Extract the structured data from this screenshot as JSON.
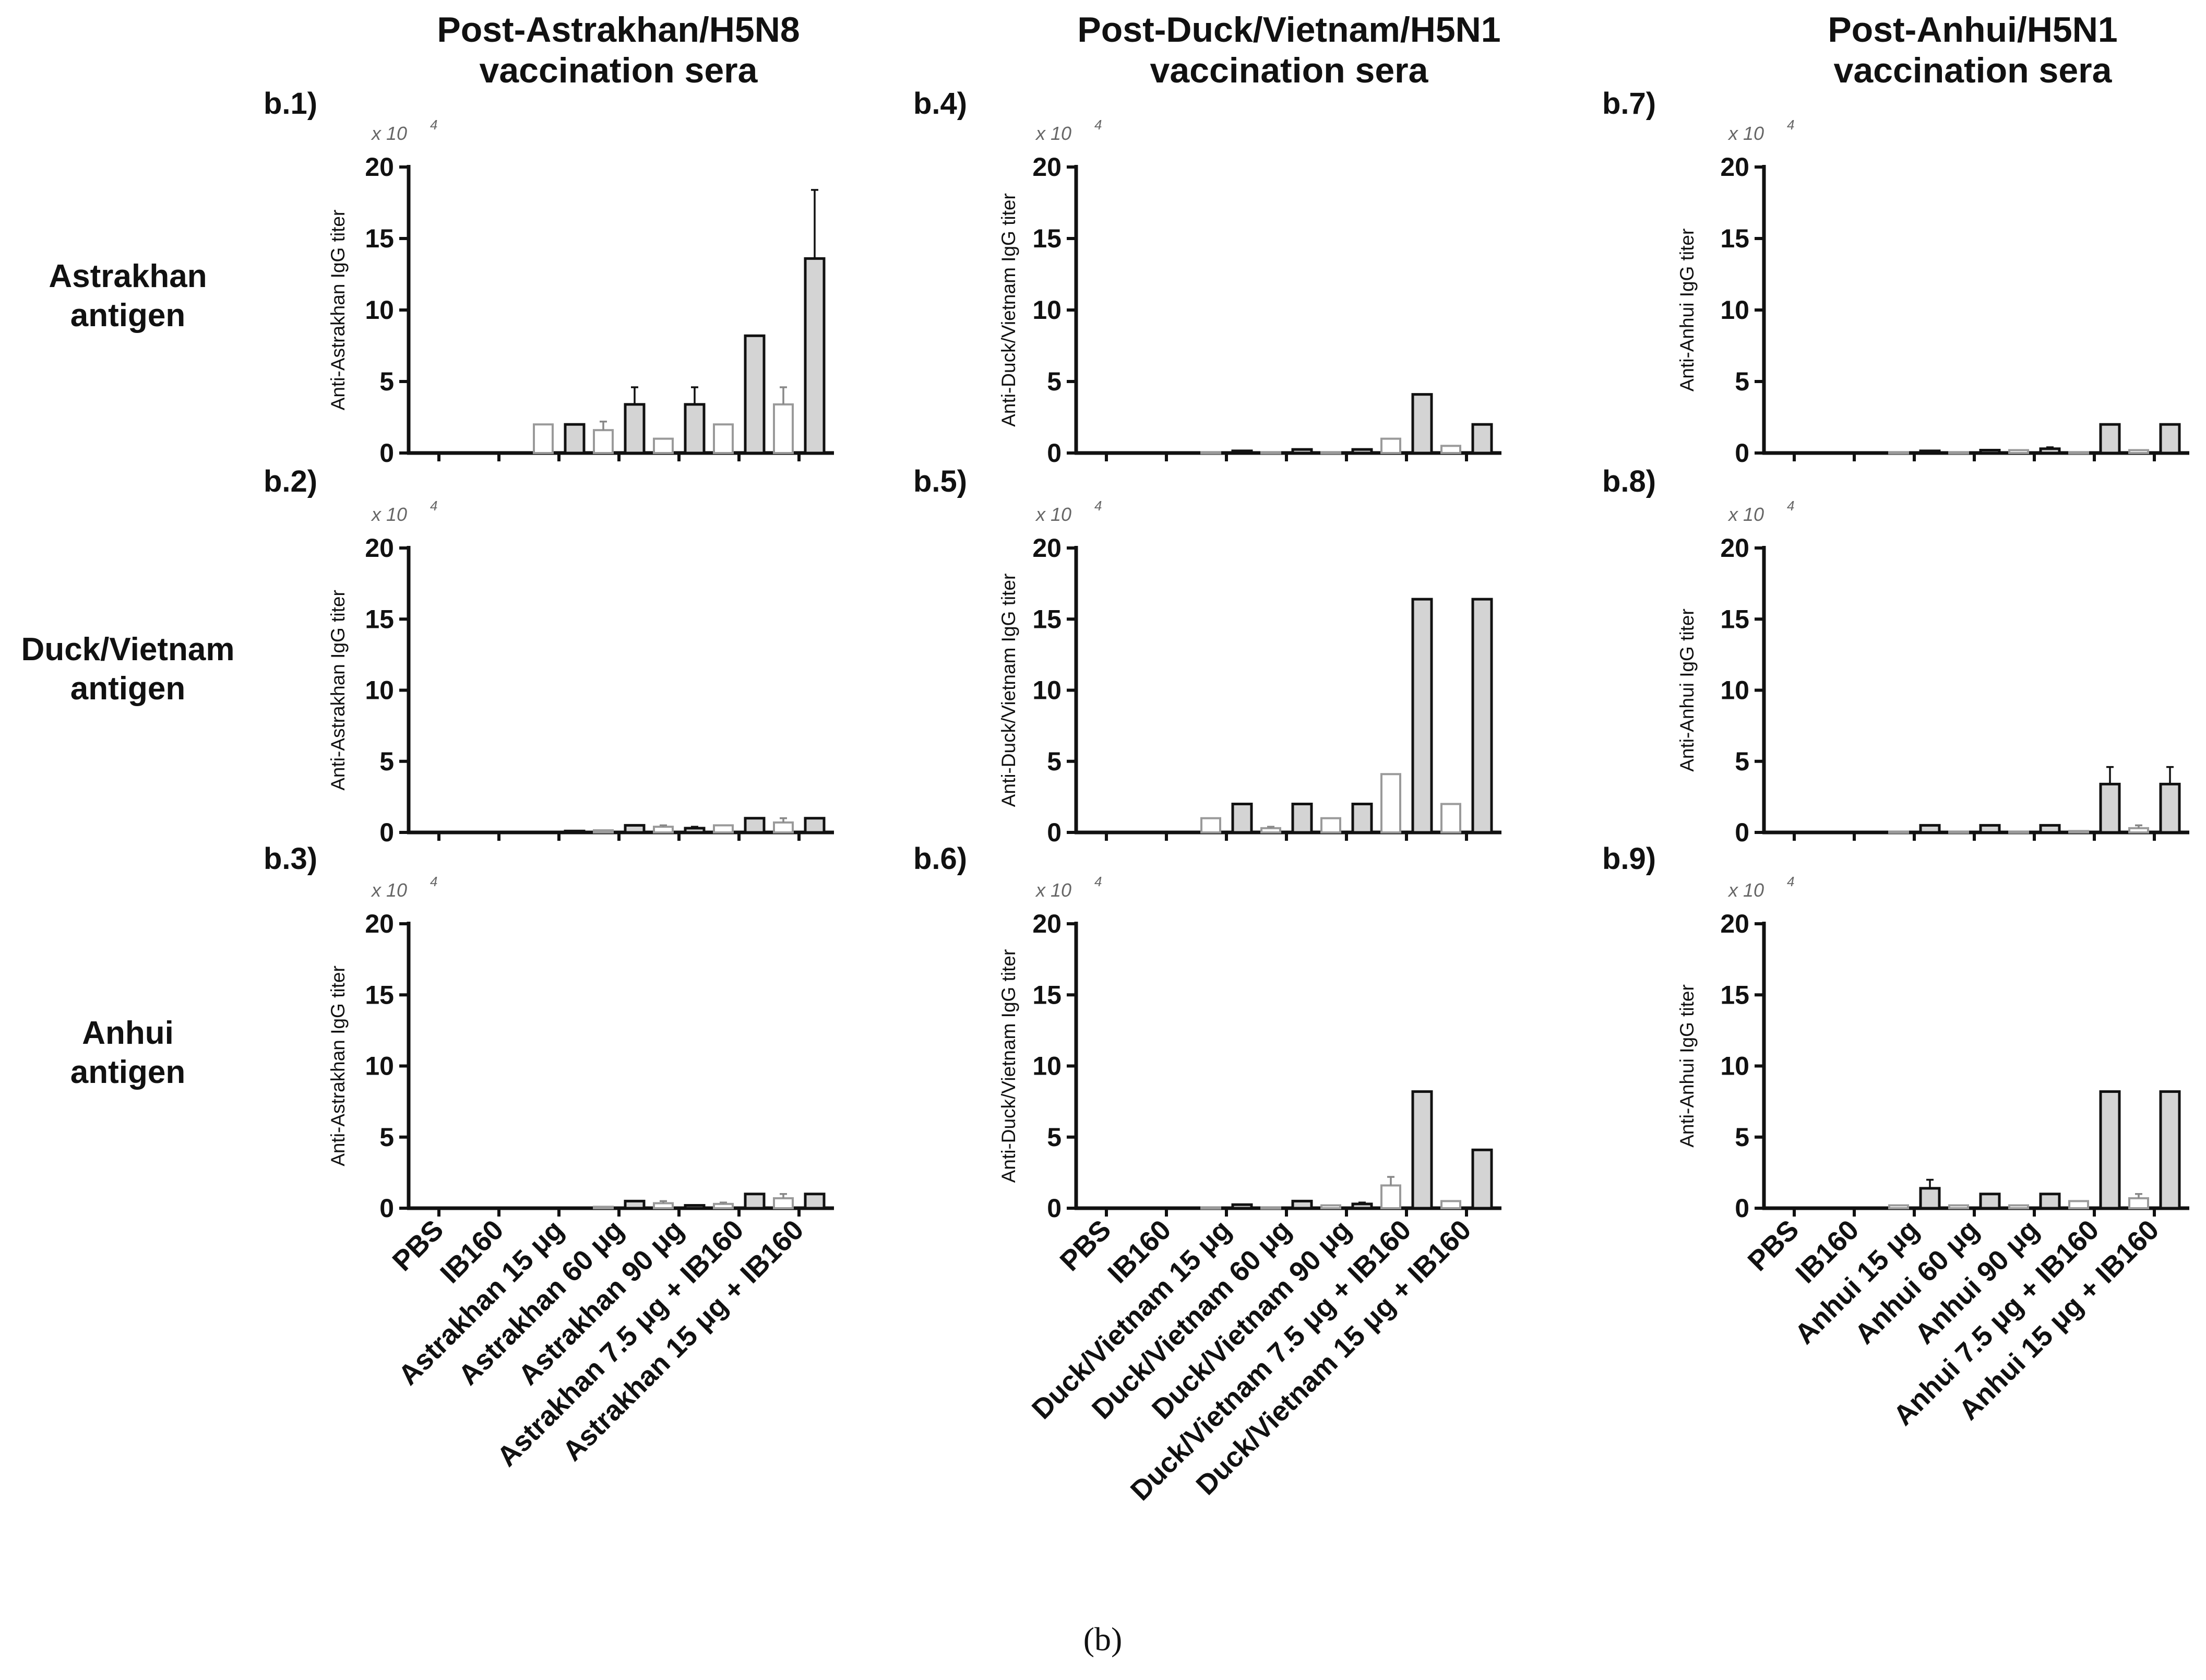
{
  "columns": [
    {
      "title_line1": "Post-Astrakhan/H5N8",
      "title_line2": "vaccination sera"
    },
    {
      "title_line1": "Post-Duck/Vietnam/H5N1",
      "title_line2": "vaccination sera"
    },
    {
      "title_line1": "Post-Anhui/H5N1",
      "title_line2": "vaccination sera"
    }
  ],
  "rows": [
    {
      "line1": "Astrakhan",
      "line2": "antigen"
    },
    {
      "line1": "Duck/Vietnam",
      "line2": "antigen"
    },
    {
      "line1": "Anhui",
      "line2": "antigen"
    }
  ],
  "caption": "(b)",
  "colors": {
    "filled_bar": "#d4d4d4",
    "open_bar": "#ffffff",
    "axis": "#111111"
  },
  "chart_data": [
    {
      "panel": "b.1)",
      "type": "bar",
      "ylabel": "Anti-Astrakhan IgG titer",
      "multiplier": "x 10",
      "multiplier_exp": "4",
      "yticks": [
        "0",
        "5",
        "10",
        "15",
        "20"
      ],
      "ylim": [
        0,
        20
      ],
      "categories": [
        "PBS",
        "IB160",
        "Astrakhan 15 μg",
        "Astrakhan 60 μg",
        "Astrakhan 90 μg",
        "Astrakhan 7.5 μg + IB160",
        "Astrakhan 15 μg + IB160"
      ],
      "series": [
        {
          "name": "open",
          "values": [
            0,
            0,
            2.0,
            1.6,
            1.0,
            2.0,
            3.4
          ],
          "errors": [
            0,
            0,
            0,
            0.6,
            0,
            0,
            1.2
          ]
        },
        {
          "name": "filled",
          "values": [
            0,
            0,
            2.0,
            3.4,
            3.4,
            8.2,
            13.6
          ],
          "errors": [
            0,
            0,
            0,
            1.2,
            1.2,
            0,
            4.8
          ]
        }
      ]
    },
    {
      "panel": "b.2)",
      "type": "bar",
      "ylabel": "Anti-Astrakhan IgG titer",
      "multiplier": "x 10",
      "multiplier_exp": "4",
      "yticks": [
        "0",
        "5",
        "10",
        "15",
        "20"
      ],
      "ylim": [
        0,
        20
      ],
      "categories": [
        "PBS",
        "IB160",
        "Astrakhan 15 μg",
        "Astrakhan 60 μg",
        "Astrakhan 90 μg",
        "Astrakhan 7.5 μg + IB160",
        "Astrakhan 15 μg + IB160"
      ],
      "series": [
        {
          "name": "open",
          "values": [
            0,
            0,
            0,
            0.15,
            0.4,
            0.5,
            0.7
          ],
          "errors": [
            0,
            0,
            0,
            0,
            0.1,
            0,
            0.3
          ]
        },
        {
          "name": "filled",
          "values": [
            0,
            0,
            0.1,
            0.5,
            0.3,
            1.0,
            1.0
          ],
          "errors": [
            0,
            0,
            0,
            0,
            0.1,
            0,
            0
          ]
        }
      ]
    },
    {
      "panel": "b.3)",
      "type": "bar",
      "ylabel": "Anti-Astrakhan IgG titer",
      "multiplier": "x 10",
      "multiplier_exp": "4",
      "yticks": [
        "0",
        "5",
        "10",
        "15",
        "20"
      ],
      "ylim": [
        0,
        20
      ],
      "categories": [
        "PBS",
        "IB160",
        "Astrakhan 15 μg",
        "Astrakhan 60 μg",
        "Astrakhan 90 μg",
        "Astrakhan 7.5 μg + IB160",
        "Astrakhan 15 μg + IB160"
      ],
      "series": [
        {
          "name": "open",
          "values": [
            0,
            0,
            0,
            0.1,
            0.35,
            0.3,
            0.7
          ],
          "errors": [
            0,
            0,
            0,
            0,
            0.15,
            0.1,
            0.3
          ]
        },
        {
          "name": "filled",
          "values": [
            0,
            0,
            0,
            0.5,
            0.2,
            1.0,
            1.0
          ],
          "errors": [
            0,
            0,
            0,
            0,
            0,
            0,
            0
          ]
        }
      ]
    },
    {
      "panel": "b.4)",
      "type": "bar",
      "ylabel": "Anti-Duck/Vietnam IgG titer",
      "multiplier": "x 10",
      "multiplier_exp": "4",
      "yticks": [
        "0",
        "5",
        "10",
        "15",
        "20"
      ],
      "ylim": [
        0,
        20
      ],
      "categories": [
        "PBS",
        "IB160",
        "Duck/Vietnam 15 μg",
        "Duck/Vietnam 60 μg",
        "Duck/Vietnam 90 μg",
        "Duck/Vietnam 7.5 μg + IB160",
        "Duck/Vietnam 15 μg + IB160"
      ],
      "series": [
        {
          "name": "open",
          "values": [
            0,
            0,
            0.05,
            0.05,
            0.05,
            1.0,
            0.5
          ],
          "errors": [
            0,
            0,
            0,
            0,
            0,
            0,
            0
          ]
        },
        {
          "name": "filled",
          "values": [
            0,
            0,
            0.15,
            0.25,
            0.25,
            4.1,
            2.0
          ],
          "errors": [
            0,
            0,
            0,
            0,
            0,
            0,
            0
          ]
        }
      ]
    },
    {
      "panel": "b.5)",
      "type": "bar",
      "ylabel": "Anti-Duck/Vietnam IgG titer",
      "multiplier": "x 10",
      "multiplier_exp": "4",
      "yticks": [
        "0",
        "5",
        "10",
        "15",
        "20"
      ],
      "ylim": [
        0,
        20
      ],
      "categories": [
        "PBS",
        "IB160",
        "Duck/Vietnam 15 μg",
        "Duck/Vietnam 60 μg",
        "Duck/Vietnam 90 μg",
        "Duck/Vietnam 7.5 μg + IB160",
        "Duck/Vietnam 15 μg + IB160"
      ],
      "series": [
        {
          "name": "open",
          "values": [
            0,
            0,
            1.0,
            0.3,
            1.0,
            4.1,
            2.0
          ],
          "errors": [
            0,
            0,
            0,
            0.1,
            0,
            0,
            0
          ]
        },
        {
          "name": "filled",
          "values": [
            0,
            0,
            2.0,
            2.0,
            2.0,
            16.4,
            16.4
          ],
          "errors": [
            0,
            0,
            0,
            0,
            0,
            0,
            0
          ]
        }
      ]
    },
    {
      "panel": "b.6)",
      "type": "bar",
      "ylabel": "Anti-Duck/Vietnam IgG titer",
      "multiplier": "x 10",
      "multiplier_exp": "4",
      "yticks": [
        "0",
        "5",
        "10",
        "15",
        "20"
      ],
      "ylim": [
        0,
        20
      ],
      "categories": [
        "PBS",
        "IB160",
        "Duck/Vietnam 15 μg",
        "Duck/Vietnam 60 μg",
        "Duck/Vietnam 90 μg",
        "Duck/Vietnam 7.5 μg + IB160",
        "Duck/Vietnam 15 μg + IB160"
      ],
      "series": [
        {
          "name": "open",
          "values": [
            0,
            0,
            0.05,
            0.05,
            0.2,
            1.6,
            0.5
          ],
          "errors": [
            0,
            0,
            0,
            0,
            0,
            0.6,
            0
          ]
        },
        {
          "name": "filled",
          "values": [
            0,
            0,
            0.25,
            0.5,
            0.3,
            8.2,
            4.1
          ],
          "errors": [
            0,
            0,
            0,
            0,
            0.1,
            0,
            0
          ]
        }
      ]
    },
    {
      "panel": "b.7)",
      "type": "bar",
      "ylabel": "Anti-Anhui IgG titer",
      "multiplier": "x 10",
      "multiplier_exp": "4",
      "yticks": [
        "0",
        "5",
        "10",
        "15",
        "20"
      ],
      "ylim": [
        0,
        20
      ],
      "categories": [
        "PBS",
        "IB160",
        "Anhui 15 μg",
        "Anhui 60 μg",
        "Anhui 90 μg",
        "Anhui 7.5 μg + IB160",
        "Anhui 15 μg + IB160"
      ],
      "series": [
        {
          "name": "open",
          "values": [
            0,
            0,
            0.05,
            0.05,
            0.2,
            0.05,
            0.2
          ],
          "errors": [
            0,
            0,
            0,
            0,
            0,
            0,
            0
          ]
        },
        {
          "name": "filled",
          "values": [
            0,
            0,
            0.15,
            0.2,
            0.3,
            2.0,
            2.0
          ],
          "errors": [
            0,
            0,
            0,
            0,
            0.1,
            0,
            0
          ]
        }
      ]
    },
    {
      "panel": "b.8)",
      "type": "bar",
      "ylabel": "Anti-Anhui IgG titer",
      "multiplier": "x 10",
      "multiplier_exp": "4",
      "yticks": [
        "0",
        "5",
        "10",
        "15",
        "20"
      ],
      "ylim": [
        0,
        20
      ],
      "categories": [
        "PBS",
        "IB160",
        "Anhui 15 μg",
        "Anhui 60 μg",
        "Anhui 90 μg",
        "Anhui 7.5 μg + IB160",
        "Anhui 15 μg + IB160"
      ],
      "series": [
        {
          "name": "open",
          "values": [
            0,
            0,
            0.05,
            0.05,
            0.05,
            0.1,
            0.3
          ],
          "errors": [
            0,
            0,
            0,
            0,
            0,
            0,
            0.2
          ]
        },
        {
          "name": "filled",
          "values": [
            0,
            0,
            0.5,
            0.5,
            0.5,
            3.4,
            3.4
          ],
          "errors": [
            0,
            0,
            0,
            0,
            0,
            1.2,
            1.2
          ]
        }
      ]
    },
    {
      "panel": "b.9)",
      "type": "bar",
      "ylabel": "Anti-Anhui IgG titer",
      "multiplier": "x 10",
      "multiplier_exp": "4",
      "yticks": [
        "0",
        "5",
        "10",
        "15",
        "20"
      ],
      "ylim": [
        0,
        20
      ],
      "categories": [
        "PBS",
        "IB160",
        "Anhui 15 μg",
        "Anhui 60 μg",
        "Anhui 90 μg",
        "Anhui 7.5 μg + IB160",
        "Anhui 15 μg + IB160"
      ],
      "series": [
        {
          "name": "open",
          "values": [
            0,
            0,
            0.2,
            0.2,
            0.2,
            0.5,
            0.7
          ],
          "errors": [
            0,
            0,
            0,
            0,
            0,
            0,
            0.3
          ]
        },
        {
          "name": "filled",
          "values": [
            0,
            0,
            1.4,
            1.0,
            1.0,
            8.2,
            8.2
          ],
          "errors": [
            0,
            0,
            0.6,
            0,
            0,
            0,
            0
          ]
        }
      ]
    }
  ]
}
